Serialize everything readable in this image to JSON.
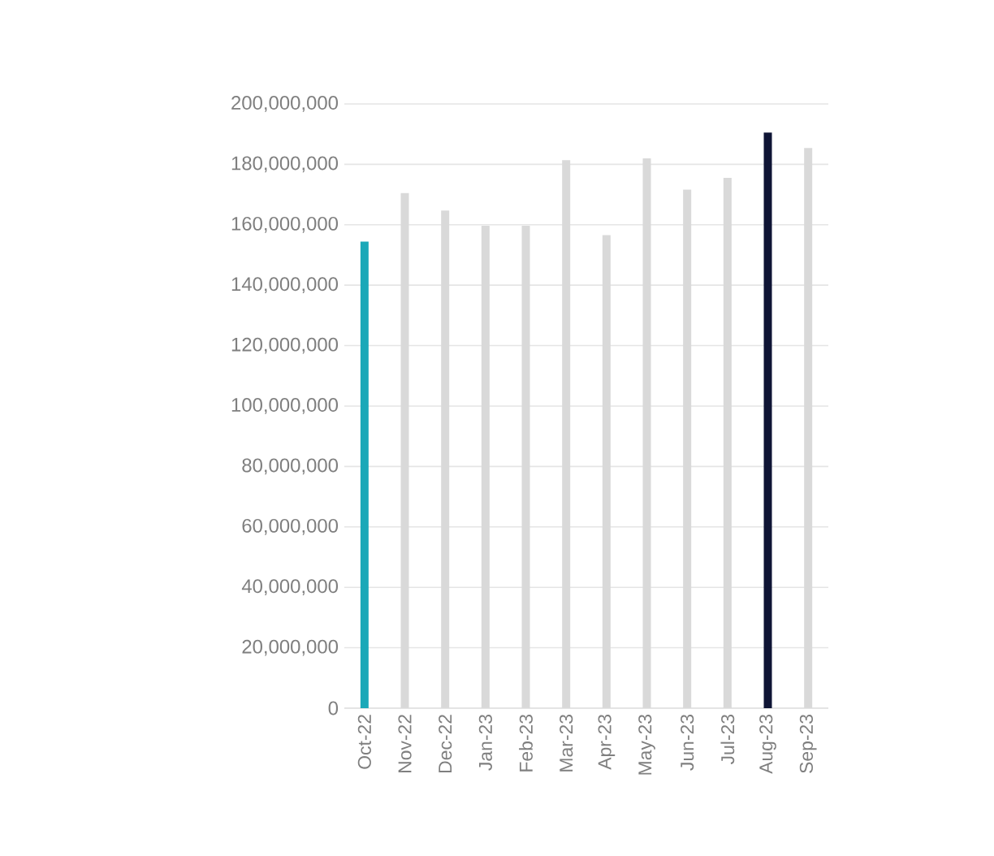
{
  "chart_data": {
    "type": "bar",
    "categories": [
      "Oct-22",
      "Nov-22",
      "Dec-22",
      "Jan-23",
      "Feb-23",
      "Mar-23",
      "Apr-23",
      "May-23",
      "Jun-23",
      "Jul-23",
      "Aug-23",
      "Sep-23"
    ],
    "values": [
      154400000,
      170500000,
      164700000,
      159700000,
      159700000,
      181400000,
      156600000,
      182000000,
      171600000,
      175500000,
      190500000,
      185400000
    ],
    "colors": [
      "#1aa8b8",
      "#d9d9d9",
      "#d9d9d9",
      "#d9d9d9",
      "#d9d9d9",
      "#d9d9d9",
      "#d9d9d9",
      "#d9d9d9",
      "#d9d9d9",
      "#d9d9d9",
      "#0f1535",
      "#d9d9d9"
    ],
    "ylim": [
      0,
      200000000
    ],
    "yticks": [
      {
        "value": 0,
        "label": "0"
      },
      {
        "value": 20000000,
        "label": "20,000,000"
      },
      {
        "value": 40000000,
        "label": "40,000,000"
      },
      {
        "value": 60000000,
        "label": "60,000,000"
      },
      {
        "value": 80000000,
        "label": "80,000,000"
      },
      {
        "value": 100000000,
        "label": "100,000,000"
      },
      {
        "value": 120000000,
        "label": "120,000,000"
      },
      {
        "value": 140000000,
        "label": "140,000,000"
      },
      {
        "value": 160000000,
        "label": "160,000,000"
      },
      {
        "value": 180000000,
        "label": "180,000,000"
      },
      {
        "value": 200000000,
        "label": "200,000,000"
      }
    ],
    "grid": "y"
  }
}
